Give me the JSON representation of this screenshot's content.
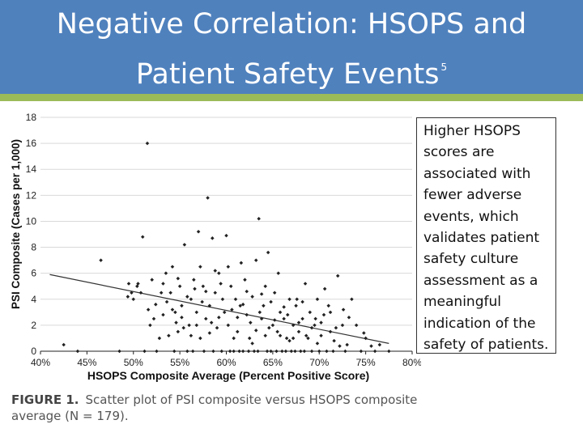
{
  "slide": {
    "title_line1": "Negative Correlation: HSOPS and",
    "title_line2": "Patient Safety Events",
    "title_superscript": "5",
    "banner_color": "#4f81bd",
    "accent_bar_color": "#9bbb59"
  },
  "note": {
    "text": "Higher HSOPS scores are associated with fewer adverse events, which validates patient safety culture assessment as a meaningful indication of the safety of patients."
  },
  "caption": {
    "figure_label": "FIGURE 1.",
    "text": "Scatter plot of PSI composite versus HSOPS composite average (N = 179)."
  },
  "chart_data": {
    "type": "scatter",
    "xlabel": "HSOPS Composite Average (Percent Positive Score)",
    "ylabel": "PSI Composite (Cases per 1,000)",
    "xlim": [
      40,
      80
    ],
    "ylim": [
      0,
      18
    ],
    "x_ticks": [
      "40%",
      "45%",
      "50%",
      "55%",
      "60%",
      "65%",
      "70%",
      "75%",
      "80%"
    ],
    "y_ticks": [
      "0",
      "2",
      "4",
      "6",
      "8",
      "10",
      "12",
      "14",
      "16",
      "18"
    ],
    "grid": "horizontal",
    "point_color": "#222222",
    "trendline": {
      "x": [
        41,
        77.5
      ],
      "y": [
        5.9,
        0.6
      ]
    },
    "points": [
      [
        42.5,
        0.5
      ],
      [
        46.5,
        7.0
      ],
      [
        49.5,
        5.2
      ],
      [
        49.8,
        4.5
      ],
      [
        50.0,
        4.0
      ],
      [
        50.5,
        5.2
      ],
      [
        50.8,
        4.5
      ],
      [
        51.0,
        8.8
      ],
      [
        51.5,
        16.0
      ],
      [
        51.6,
        3.2
      ],
      [
        51.8,
        2.0
      ],
      [
        52.0,
        5.5
      ],
      [
        52.2,
        2.5
      ],
      [
        52.8,
        1.0
      ],
      [
        53.0,
        4.5
      ],
      [
        53.2,
        2.8
      ],
      [
        53.5,
        6.0
      ],
      [
        53.8,
        1.2
      ],
      [
        54.0,
        4.5
      ],
      [
        54.2,
        6.5
      ],
      [
        54.5,
        3.0
      ],
      [
        54.8,
        1.5
      ],
      [
        55.0,
        5.0
      ],
      [
        55.2,
        3.5
      ],
      [
        55.5,
        8.2
      ],
      [
        55.8,
        0.0
      ],
      [
        56.0,
        2.0
      ],
      [
        56.2,
        4.0
      ],
      [
        56.5,
        5.5
      ],
      [
        56.8,
        3.0
      ],
      [
        57.0,
        9.2
      ],
      [
        57.2,
        1.0
      ],
      [
        57.5,
        5.0
      ],
      [
        57.8,
        2.5
      ],
      [
        58.0,
        11.8
      ],
      [
        58.2,
        3.5
      ],
      [
        58.5,
        8.7
      ],
      [
        58.8,
        4.5
      ],
      [
        59.0,
        1.8
      ],
      [
        59.2,
        6.0
      ],
      [
        59.5,
        0.0
      ],
      [
        59.8,
        3.0
      ],
      [
        60.0,
        8.9
      ],
      [
        60.2,
        2.0
      ],
      [
        60.5,
        5.0
      ],
      [
        60.8,
        0.0
      ],
      [
        61.0,
        4.0
      ],
      [
        61.2,
        1.5
      ],
      [
        61.5,
        3.5
      ],
      [
        61.8,
        0.0
      ],
      [
        62.0,
        5.5
      ],
      [
        62.2,
        2.8
      ],
      [
        62.5,
        1.0
      ],
      [
        62.8,
        4.2
      ],
      [
        63.0,
        0.0
      ],
      [
        63.2,
        7.0
      ],
      [
        63.5,
        10.2
      ],
      [
        63.8,
        2.5
      ],
      [
        64.0,
        3.5
      ],
      [
        64.2,
        1.2
      ],
      [
        64.5,
        7.6
      ],
      [
        64.8,
        0.0
      ],
      [
        65.0,
        2.0
      ],
      [
        65.2,
        4.5
      ],
      [
        65.5,
        1.5
      ],
      [
        65.8,
        3.0
      ],
      [
        66.0,
        0.0
      ],
      [
        66.2,
        2.5
      ],
      [
        66.5,
        1.0
      ],
      [
        66.8,
        4.0
      ],
      [
        67.0,
        0.0
      ],
      [
        67.2,
        2.0
      ],
      [
        67.5,
        3.5
      ],
      [
        67.8,
        1.5
      ],
      [
        68.0,
        0.0
      ],
      [
        68.2,
        2.5
      ],
      [
        68.5,
        5.2
      ],
      [
        68.8,
        1.0
      ],
      [
        69.0,
        3.0
      ],
      [
        69.2,
        0.0
      ],
      [
        69.5,
        2.0
      ],
      [
        69.8,
        4.0
      ],
      [
        70.0,
        0.0
      ],
      [
        70.2,
        1.2
      ],
      [
        70.5,
        2.8
      ],
      [
        71.0,
        3.5
      ],
      [
        71.2,
        1.5
      ],
      [
        71.5,
        0.0
      ],
      [
        72.0,
        5.8
      ],
      [
        72.5,
        2.0
      ],
      [
        73.0,
        0.5
      ],
      [
        73.5,
        4.0
      ],
      [
        74.0,
        2.0
      ],
      [
        74.5,
        0.0
      ],
      [
        75.0,
        1.0
      ],
      [
        76.0,
        0.0
      ],
      [
        76.5,
        0.5
      ],
      [
        77.5,
        0.0
      ],
      [
        44.0,
        0.0
      ],
      [
        48.5,
        0.0
      ],
      [
        51.2,
        0.0
      ],
      [
        52.5,
        0.0
      ],
      [
        54.4,
        0.0
      ],
      [
        56.4,
        0.0
      ],
      [
        57.6,
        0.0
      ],
      [
        58.6,
        0.0
      ],
      [
        60.4,
        0.0
      ],
      [
        61.4,
        0.0
      ],
      [
        62.4,
        0.0
      ],
      [
        63.4,
        0.0
      ],
      [
        64.4,
        0.0
      ],
      [
        65.4,
        0.0
      ],
      [
        66.4,
        0.0
      ],
      [
        67.4,
        0.0
      ],
      [
        68.4,
        0.0
      ],
      [
        70.8,
        0.0
      ],
      [
        72.8,
        0.0
      ],
      [
        55.4,
        1.8
      ],
      [
        56.6,
        4.8
      ],
      [
        57.4,
        3.8
      ],
      [
        58.4,
        2.2
      ],
      [
        59.4,
        5.2
      ],
      [
        60.6,
        3.2
      ],
      [
        61.6,
        6.8
      ],
      [
        62.6,
        2.2
      ],
      [
        63.6,
        3.0
      ],
      [
        64.6,
        1.8
      ],
      [
        65.6,
        6.0
      ],
      [
        66.6,
        2.8
      ],
      [
        67.6,
        4.0
      ],
      [
        68.6,
        1.2
      ],
      [
        69.6,
        2.5
      ],
      [
        70.6,
        4.8
      ],
      [
        71.6,
        0.8
      ],
      [
        72.6,
        3.2
      ],
      [
        53.6,
        3.8
      ],
      [
        54.6,
        2.2
      ],
      [
        52.4,
        3.6
      ],
      [
        50.4,
        5.0
      ],
      [
        49.4,
        4.2
      ],
      [
        58.8,
        6.2
      ],
      [
        59.6,
        4.0
      ],
      [
        60.2,
        6.5
      ],
      [
        61.2,
        2.6
      ],
      [
        62.2,
        4.6
      ],
      [
        63.2,
        1.6
      ],
      [
        64.2,
        5.0
      ],
      [
        65.2,
        2.4
      ],
      [
        66.2,
        3.4
      ],
      [
        67.2,
        1.0
      ],
      [
        68.2,
        3.8
      ],
      [
        69.2,
        1.8
      ],
      [
        57.2,
        6.5
      ],
      [
        56.2,
        1.2
      ],
      [
        55.2,
        2.6
      ],
      [
        54.2,
        3.2
      ],
      [
        53.2,
        5.2
      ],
      [
        62.8,
        0.6
      ],
      [
        64.8,
        3.8
      ],
      [
        66.8,
        0.8
      ],
      [
        70.2,
        2.2
      ],
      [
        71.8,
        1.8
      ],
      [
        73.2,
        2.6
      ],
      [
        74.8,
        1.4
      ],
      [
        75.6,
        0.4
      ],
      [
        60.8,
        1.0
      ],
      [
        58.2,
        1.4
      ],
      [
        56.8,
        2.0
      ],
      [
        59.2,
        2.6
      ],
      [
        61.8,
        3.6
      ],
      [
        63.8,
        4.4
      ],
      [
        65.8,
        1.2
      ],
      [
        67.8,
        2.2
      ],
      [
        69.8,
        0.6
      ],
      [
        71.2,
        3.0
      ],
      [
        72.2,
        0.4
      ],
      [
        57.8,
        4.6
      ],
      [
        55.8,
        4.2
      ],
      [
        54.8,
        5.6
      ]
    ]
  }
}
